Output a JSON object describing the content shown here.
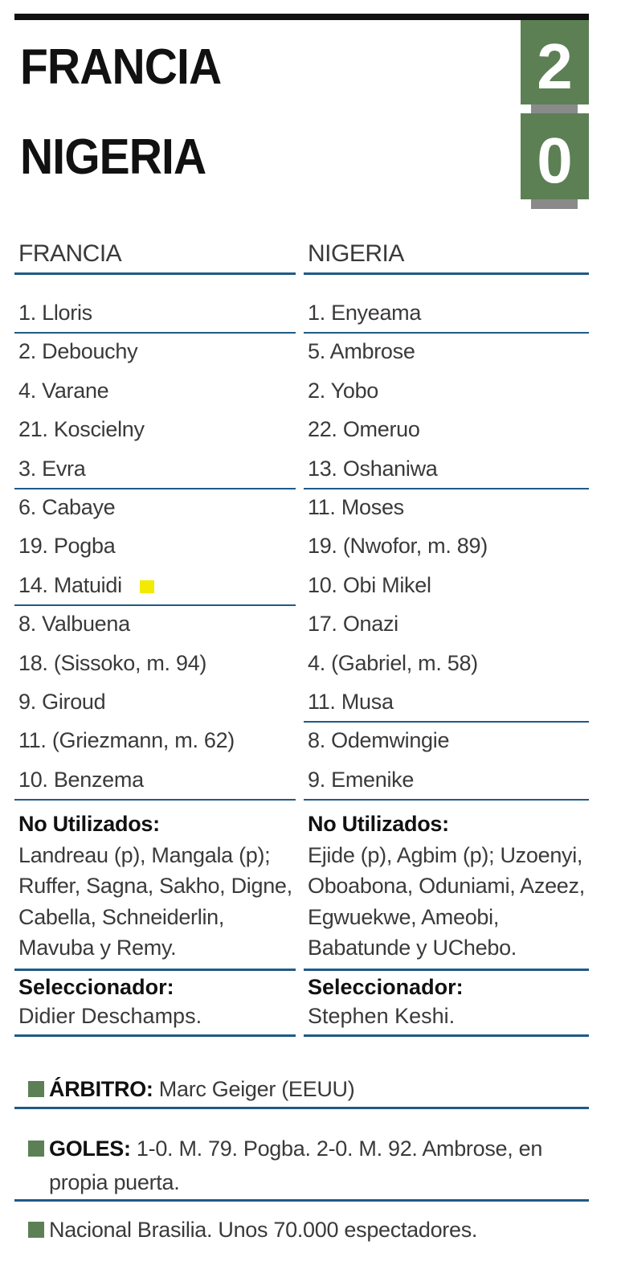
{
  "match": {
    "home_team": "FRANCIA",
    "away_team": "NIGERIA",
    "home_score": "2",
    "away_score": "0",
    "score_color": "#5c8054"
  },
  "francia": {
    "header": "FRANCIA",
    "lineup": [
      "1. Lloris",
      "2. Debouchy",
      "4. Varane",
      "21. Koscielny",
      "3. Evra",
      "6. Cabaye",
      "19. Pogba",
      "14. Matuidi",
      "8. Valbuena",
      "18. (Sissoko, m. 94)",
      "9. Giroud",
      "11. (Griezmann, m. 62)",
      "10. Benzema"
    ],
    "unused_label": "No Utilizados:",
    "unused": "Landreau (p), Mangala (p); Ruffer, Sagna, Sakho, Digne, Cabella, Schneiderlin, Mavuba y Remy.",
    "coach_label": "Seleccionador:",
    "coach": "Didier Deschamps."
  },
  "nigeria": {
    "header": "NIGERIA",
    "lineup": [
      "1. Enyeama",
      "5. Ambrose",
      "2. Yobo",
      "22. Omeruo",
      "13. Oshaniwa",
      "11. Moses",
      "19. (Nwofor, m. 89)",
      "10. Obi Mikel",
      "17. Onazi",
      "4. (Gabriel, m. 58)",
      "11. Musa",
      "8. Odemwingie",
      "9. Emenike"
    ],
    "unused_label": "No Utilizados:",
    "unused": "Ejide (p), Agbim (p); Uzoenyi, Oboabona, Oduniami, Azeez, Egwuekwe, Ameobi, Babatunde y UChebo.",
    "coach_label": "Seleccionador:",
    "coach": "Stephen Keshi."
  },
  "referee": {
    "label": "ÁRBITRO:",
    "value": "Marc Geiger (EEUU)"
  },
  "goals": {
    "label": "GOLES:",
    "value": "1-0. M. 79. Pogba. 2-0. M. 92. Ambrose, en propia puerta."
  },
  "venue": "Nacional Brasilia. Unos 70.000 espectadores.",
  "yellow_card_color": "#f2ea00"
}
